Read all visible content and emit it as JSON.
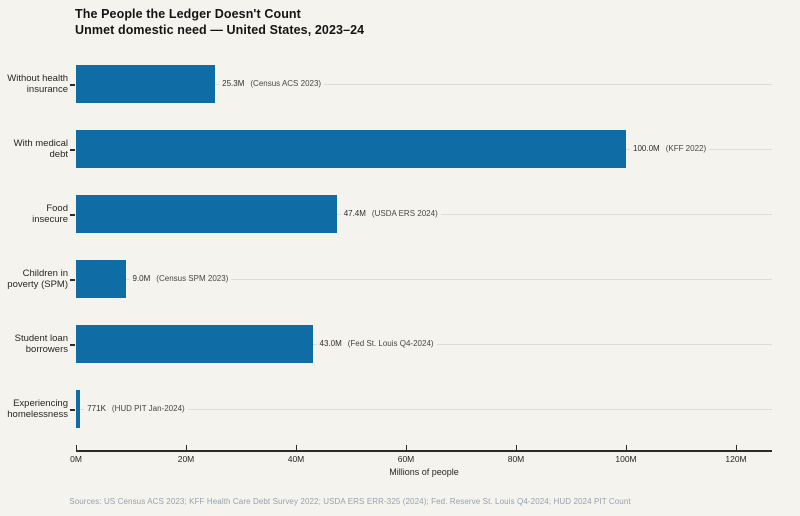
{
  "colors": {
    "background": "#f5f3ee",
    "bar": "#0f6ca5",
    "axis": "#2b2b2b",
    "row_line": "#dedcd5",
    "footer_text": "#93a2b1"
  },
  "chart_data": {
    "type": "bar",
    "orientation": "horizontal",
    "title": "The People the Ledger Doesn't Count",
    "subtitle": "Unmet domestic need — United States, 2023–24",
    "xlabel": "Millions of people",
    "xlim": [
      0,
      126.5
    ],
    "x_tick_values": [
      0,
      20,
      40,
      60,
      80,
      100,
      120
    ],
    "x_tick_labels": [
      "0M",
      "20M",
      "40M",
      "60M",
      "80M",
      "100M",
      "120M"
    ],
    "grid": "faint horizontal leader lines per row",
    "legend": "none",
    "bars": [
      {
        "category": "Without health\ninsurance",
        "value_millions": 25.3,
        "value_label": "25.3M",
        "source_label": "(Census ACS 2023)"
      },
      {
        "category": "With medical\ndebt",
        "value_millions": 100.0,
        "value_label": "100.0M",
        "source_label": "(KFF 2022)"
      },
      {
        "category": "Food\ninsecure",
        "value_millions": 47.4,
        "value_label": "47.4M",
        "source_label": "(USDA ERS 2024)"
      },
      {
        "category": "Children in\npoverty (SPM)",
        "value_millions": 9.0,
        "value_label": "9.0M",
        "source_label": "(Census SPM 2023)"
      },
      {
        "category": "Student loan\nborrowers",
        "value_millions": 43.0,
        "value_label": "43.0M",
        "source_label": "(Fed St. Louis Q4-2024)"
      },
      {
        "category": "Experiencing\nhomelessness",
        "value_millions": 0.771,
        "value_label": "771K",
        "source_label": "(HUD PIT Jan-2024)"
      }
    ],
    "footer": "Sources: US Census ACS 2023; KFF Health Care Debt Survey 2022; USDA ERS ERR-325 (2024); Fed. Reserve St. Louis Q4-2024; HUD 2024 PIT Count"
  }
}
